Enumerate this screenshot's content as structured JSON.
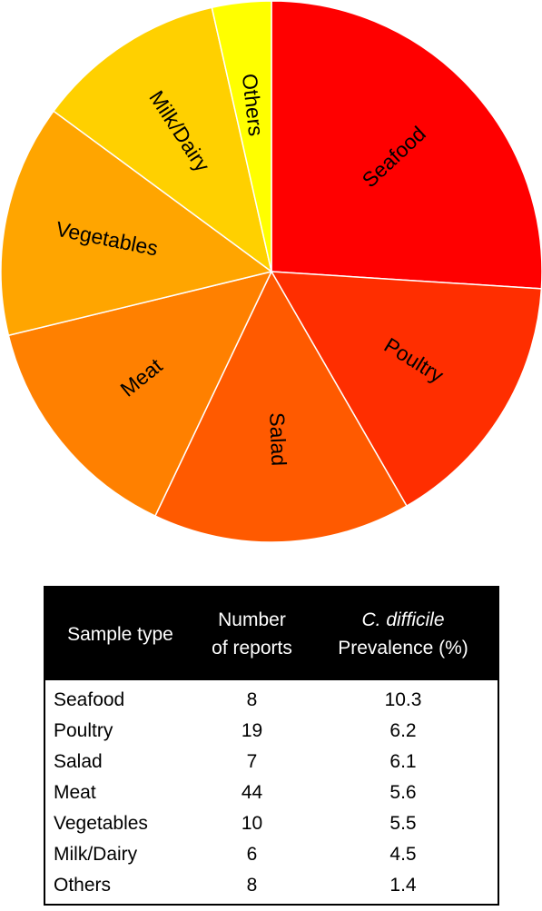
{
  "chart_data": {
    "type": "pie",
    "categories": [
      "Seafood",
      "Poultry",
      "Salad",
      "Meat",
      "Vegetables",
      "Milk/Dairy",
      "Others"
    ],
    "values": [
      10.3,
      6.2,
      6.1,
      5.6,
      5.5,
      4.5,
      1.4
    ],
    "colors": [
      "#ff0000",
      "#ff2e00",
      "#ff5a00",
      "#ff8000",
      "#ffa500",
      "#ffd000",
      "#ffff00"
    ],
    "start": "12 o'clock, clockwise"
  },
  "table": {
    "headers": {
      "col1": "Sample type",
      "col2_line1": "Number",
      "col2_line2": "of reports",
      "col3_line1": "C. difficile",
      "col3_line2": "Prevalence (%)"
    },
    "rows": [
      {
        "type": "Seafood",
        "reports": "8",
        "prevalence": "10.3"
      },
      {
        "type": "Poultry",
        "reports": "19",
        "prevalence": "6.2"
      },
      {
        "type": "Salad",
        "reports": "7",
        "prevalence": "6.1"
      },
      {
        "type": "Meat",
        "reports": "44",
        "prevalence": "5.6"
      },
      {
        "type": "Vegetables",
        "reports": "10",
        "prevalence": "5.5"
      },
      {
        "type": "Milk/Dairy",
        "reports": "6",
        "prevalence": "4.5"
      },
      {
        "type": "Others",
        "reports": "8",
        "prevalence": "1.4"
      }
    ]
  }
}
